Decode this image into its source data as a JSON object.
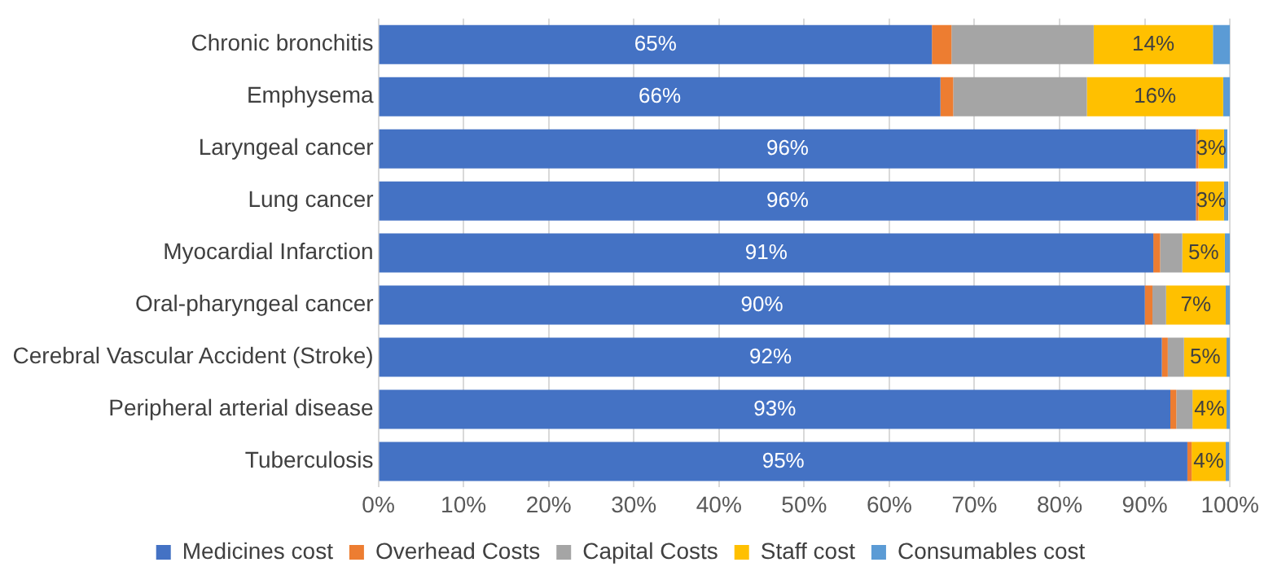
{
  "chart_data": {
    "type": "bar",
    "orientation": "horizontal",
    "stacked": true,
    "categories": [
      "Chronic bronchitis",
      "Emphysema",
      "Laryngeal cancer",
      "Lung cancer",
      "Myocardial Infarction",
      "Oral-pharyngeal cancer",
      "Cerebral Vascular Accident (Stroke)",
      "Peripheral arterial disease",
      "Tuberculosis"
    ],
    "series": [
      {
        "name": "Medicines cost",
        "color": "#4472c4",
        "values": [
          65,
          66,
          96,
          96,
          91,
          90,
          92,
          93,
          95
        ],
        "value_labels": [
          "65%",
          "66%",
          "96%",
          "96%",
          "91%",
          "90%",
          "92%",
          "93%",
          "95%"
        ]
      },
      {
        "name": "Overhead Costs",
        "color": "#ed7d31",
        "values": [
          2.3,
          1.5,
          0.3,
          0.3,
          0.8,
          0.9,
          0.7,
          0.7,
          0.5
        ]
      },
      {
        "name": "Capital Costs",
        "color": "#a5a5a5",
        "values": [
          16.7,
          15.7,
          null,
          null,
          2.6,
          1.6,
          1.9,
          1.9,
          null
        ]
      },
      {
        "name": "Staff cost",
        "color": "#ffc000",
        "values": [
          14,
          16,
          3,
          3,
          5,
          7,
          5,
          4,
          4
        ],
        "value_labels": [
          "14%",
          "16%",
          "3%",
          "3%",
          "5%",
          "7%",
          "5%",
          "4%",
          "4%"
        ]
      },
      {
        "name": "Consumables cost",
        "color": "#5b9bd5",
        "values": [
          2,
          0.8,
          0.4,
          0.5,
          0.6,
          0.5,
          0.4,
          0.4,
          0.4
        ]
      }
    ],
    "xlim": [
      0,
      100
    ],
    "xticks": [
      {
        "value": 0,
        "label": "0%"
      },
      {
        "value": 10,
        "label": "10%"
      },
      {
        "value": 20,
        "label": "20%"
      },
      {
        "value": 30,
        "label": "30%"
      },
      {
        "value": 40,
        "label": "40%"
      },
      {
        "value": 50,
        "label": "50%"
      },
      {
        "value": 60,
        "label": "60%"
      },
      {
        "value": 70,
        "label": "70%"
      },
      {
        "value": 80,
        "label": "80%"
      },
      {
        "value": 90,
        "label": "90%"
      },
      {
        "value": 100,
        "label": "100%"
      }
    ],
    "grid": "x",
    "legend": "bottom"
  }
}
